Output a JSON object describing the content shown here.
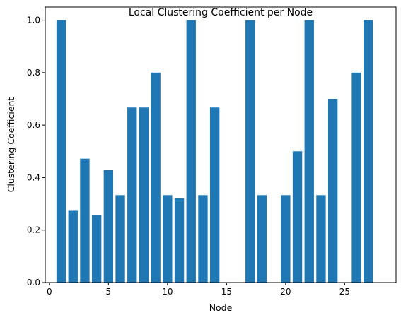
{
  "chart_data": {
    "type": "bar",
    "title": "Local Clustering Coefficient per Node",
    "xlabel": "Node",
    "ylabel": "Clustering Coefficient",
    "xlim": [
      -0.35,
      29.35
    ],
    "ylim": [
      0,
      1.05
    ],
    "xticks": [
      0,
      5,
      10,
      15,
      20,
      25
    ],
    "yticks": [
      0.0,
      0.2,
      0.4,
      0.6,
      0.8,
      1.0
    ],
    "xtick_labels": [
      "0",
      "5",
      "10",
      "15",
      "20",
      "25"
    ],
    "ytick_labels": [
      "0.0",
      "0.2",
      "0.4",
      "0.6",
      "0.8",
      "1.0"
    ],
    "grid": false,
    "bar_color": "#1f77b4",
    "x": [
      1,
      2,
      3,
      4,
      5,
      6,
      7,
      8,
      9,
      10,
      11,
      12,
      13,
      14,
      15,
      16,
      17,
      18,
      19,
      20,
      21,
      22,
      23,
      24,
      25,
      26,
      27,
      28
    ],
    "values": [
      1.0,
      0.276,
      0.472,
      0.258,
      0.429,
      0.333,
      0.667,
      0.667,
      0.8,
      0.333,
      0.321,
      1.0,
      0.333,
      0.667,
      0.0,
      0.0,
      1.0,
      0.333,
      0.0,
      0.333,
      0.5,
      1.0,
      0.333,
      0.7,
      0.0,
      0.8,
      1.0,
      0.0
    ]
  }
}
